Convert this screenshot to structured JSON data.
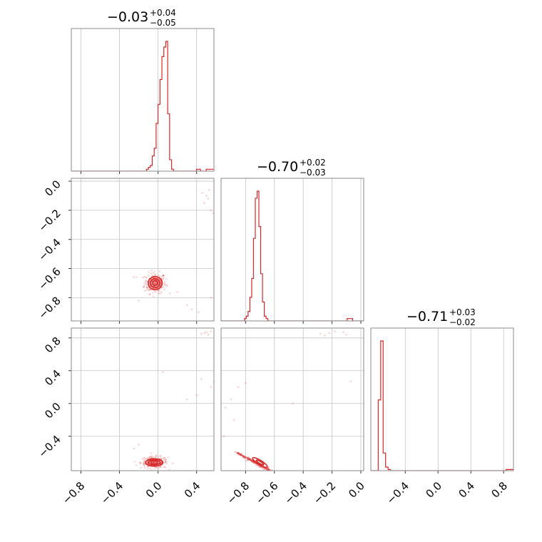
{
  "chart_data": [
    {
      "type": "histogram",
      "panel": "hist-param-1",
      "title": {
        "median": "−0.03",
        "plus": "+0.04",
        "minus": "−0.05"
      },
      "xlim": [
        -0.9,
        0.58
      ],
      "grid_x": [
        -0.8,
        -0.4,
        0.0,
        0.4
      ],
      "bins": {
        "start": -0.9,
        "width": 0.02,
        "counts": [
          0,
          0,
          0,
          0,
          0,
          0,
          0,
          0,
          0,
          0,
          0,
          0,
          0,
          0,
          0,
          0,
          0,
          0,
          0,
          0,
          0,
          0,
          0,
          0,
          0,
          0,
          0,
          0,
          0,
          0,
          0,
          0,
          0,
          0,
          0,
          0,
          0,
          0,
          0,
          1,
          2,
          3,
          8,
          12,
          25,
          35,
          48,
          60,
          65,
          68,
          30,
          6,
          1,
          0,
          0,
          0,
          0,
          0,
          0,
          0,
          0,
          0,
          0,
          0,
          0,
          1,
          1,
          0,
          0,
          0,
          1,
          1,
          1,
          1,
          1,
          0,
          0,
          0,
          0,
          0,
          0,
          0,
          0,
          0,
          0,
          0,
          0,
          0,
          0,
          0,
          0,
          0,
          0,
          0,
          0,
          0,
          0,
          0,
          0,
          0,
          0,
          0,
          0,
          0,
          0,
          0,
          0,
          0,
          0,
          0,
          0,
          0,
          0,
          0
        ]
      }
    },
    {
      "type": "scatter",
      "panel": "2d-param-1-vs-param-2",
      "xlim": [
        -0.9,
        0.58
      ],
      "ylim": [
        -0.96,
        0.02
      ],
      "grid_x": [
        -0.8,
        -0.4,
        0.0,
        0.4
      ],
      "grid_y": [
        0.0,
        -0.2,
        -0.4,
        -0.6,
        -0.8
      ],
      "yticks": [
        "0.0",
        "−0.2",
        "−0.4",
        "−0.6",
        "−0.8"
      ],
      "core": {
        "x": -0.03,
        "y": -0.7,
        "sx": 0.04,
        "sy": 0.025
      },
      "outliers": [
        [
          0.46,
          -0.08
        ],
        [
          0.5,
          -0.1
        ],
        [
          0.52,
          -0.12
        ],
        [
          0.55,
          -0.2
        ],
        [
          0.48,
          -0.15
        ],
        [
          0.53,
          -0.06
        ],
        [
          0.57,
          -0.22
        ],
        [
          0.3,
          -0.85
        ],
        [
          0.35,
          -0.88
        ],
        [
          0.42,
          -0.9
        ],
        [
          0.55,
          -0.8
        ],
        [
          0.2,
          -0.76
        ],
        [
          -0.25,
          -0.66
        ],
        [
          -0.2,
          -0.82
        ]
      ]
    },
    {
      "type": "histogram",
      "panel": "hist-param-2",
      "title": {
        "median": "−0.70",
        "plus": "+0.02",
        "minus": "−0.03"
      },
      "xlim": [
        -0.97,
        0.02
      ],
      "grid_x": [
        -0.8,
        -0.6,
        -0.4,
        -0.2,
        0.0
      ],
      "bins": {
        "start": -0.97,
        "width": 0.0125,
        "counts": [
          0,
          0,
          0,
          0,
          0,
          0,
          0,
          0,
          0,
          0,
          0,
          0,
          0,
          1,
          2,
          4,
          10,
          18,
          35,
          52,
          55,
          40,
          20,
          8,
          2,
          1,
          0,
          0,
          0,
          0,
          0,
          0,
          0,
          0,
          0,
          0,
          0,
          0,
          0,
          0,
          0,
          0,
          0,
          0,
          0,
          0,
          0,
          0,
          0,
          0,
          0,
          0,
          0,
          0,
          0,
          0,
          0,
          0,
          0,
          0,
          0,
          0,
          0,
          0,
          0,
          0,
          0,
          0,
          0,
          0,
          1,
          1,
          1,
          0,
          0,
          0,
          0,
          0,
          0,
          0
        ]
      }
    },
    {
      "type": "scatter",
      "panel": "2d-param-1-vs-param-3",
      "xlim": [
        -0.9,
        0.58
      ],
      "ylim": [
        -0.82,
        0.92
      ],
      "grid_x": [
        -0.8,
        -0.4,
        0.0,
        0.4
      ],
      "grid_y": [
        0.8,
        0.4,
        0.0,
        -0.4
      ],
      "yticks": [
        "0.8",
        "0.4",
        "0.0",
        "−0.4"
      ],
      "core": {
        "x": -0.04,
        "y": -0.72,
        "sx": 0.05,
        "sy": 0.025
      },
      "outliers": [
        [
          0.45,
          0.85
        ],
        [
          0.5,
          0.87
        ],
        [
          0.52,
          0.84
        ],
        [
          0.55,
          0.88
        ],
        [
          0.48,
          0.86
        ],
        [
          0.4,
          0.1
        ],
        [
          0.3,
          0.05
        ],
        [
          0.55,
          0.2
        ],
        [
          0.58,
          0.26
        ],
        [
          0.05,
          0.38
        ],
        [
          0.45,
          0.3
        ],
        [
          -0.2,
          -0.5
        ],
        [
          -0.25,
          -0.55
        ]
      ]
    },
    {
      "type": "scatter",
      "panel": "2d-param-2-vs-param-3",
      "xlim": [
        -0.97,
        0.02
      ],
      "ylim": [
        -0.82,
        0.92
      ],
      "grid_x": [
        -0.8,
        -0.6,
        -0.4,
        -0.2,
        0.0
      ],
      "grid_y": [
        0.8,
        0.4,
        0.0,
        -0.4
      ],
      "diagonal_band": {
        "x0": -0.86,
        "y0": -0.6,
        "x1": -0.63,
        "y1": -0.82
      },
      "core": {
        "x": -0.7,
        "y": -0.72
      },
      "outliers": [
        [
          -0.28,
          0.85
        ],
        [
          -0.22,
          0.86
        ],
        [
          -0.18,
          0.88
        ],
        [
          -0.12,
          0.87
        ],
        [
          -0.1,
          0.84
        ],
        [
          -0.25,
          0.83
        ],
        [
          -0.94,
          -0.05
        ],
        [
          -0.9,
          0.05
        ],
        [
          -0.88,
          -0.2
        ],
        [
          -0.95,
          -0.4
        ],
        [
          -0.85,
          0.2
        ],
        [
          -0.8,
          0.25
        ],
        [
          -0.07,
          0.27
        ],
        [
          -0.47,
          0.0
        ]
      ]
    },
    {
      "type": "histogram",
      "panel": "hist-param-3",
      "title": {
        "median": "−0.71",
        "plus": "+0.03",
        "minus": "−0.02"
      },
      "xlim": [
        -0.82,
        0.92
      ],
      "grid_x": [
        -0.4,
        0.0,
        0.4,
        0.8
      ],
      "bins": {
        "start": -0.82,
        "width": 0.03,
        "counts": [
          0,
          0,
          0,
          60,
          110,
          15,
          3,
          1,
          0,
          0,
          0,
          0,
          0,
          0,
          0,
          0,
          0,
          0,
          0,
          0,
          0,
          0,
          0,
          0,
          0,
          0,
          0,
          0,
          0,
          0,
          0,
          0,
          0,
          0,
          0,
          0,
          0,
          0,
          0,
          0,
          0,
          0,
          0,
          0,
          0,
          0,
          0,
          0,
          0,
          0,
          0,
          0,
          0,
          0,
          0,
          1,
          1,
          1
        ]
      }
    }
  ],
  "axes": {
    "bottom_x1": [
      "−0.8",
      "−0.4",
      "0.0",
      "0.4"
    ],
    "bottom_x2": [
      "−0.8",
      "−0.6",
      "−0.4",
      "−0.2",
      "0.0"
    ],
    "bottom_x3": [
      "−0.4",
      "0.0",
      "0.4",
      "0.8"
    ]
  },
  "colors": {
    "series": "#d62728",
    "grid": "#c4c4c4",
    "frame": "#8a8a8a"
  }
}
